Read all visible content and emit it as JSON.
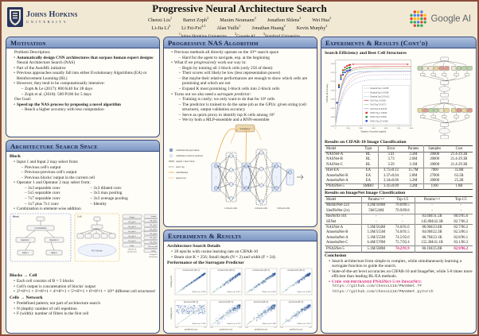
{
  "poster": {
    "title": "Progressive Neural Architecture Search",
    "jhu_logo": {
      "line1": "Johns Hopkins",
      "line2": "University"
    },
    "google_logo": "Google AI",
    "authors_line1": [
      [
        "Chenxi Liu",
        "1"
      ],
      [
        "Barret Zoph",
        "2"
      ],
      [
        "Maxim Neumann",
        "2"
      ],
      [
        "Jonathon Shlens",
        "2"
      ],
      [
        "Wei Hua",
        "2"
      ]
    ],
    "authors_line2": [
      [
        "Li-Jia Li",
        "2"
      ],
      [
        "Li Fei-Fei",
        "2,3"
      ],
      [
        "Alan Yuille",
        "1"
      ],
      [
        "Jonathan Huang",
        "2"
      ],
      [
        "Kevin Murphy",
        "2"
      ]
    ],
    "affiliations": [
      [
        "1",
        "Johns Hopkins University"
      ],
      [
        "2",
        "Google AI"
      ],
      [
        "3",
        "Stanford University"
      ]
    ]
  },
  "motivation": {
    "heading": "Motivation",
    "items": [
      {
        "l": 0,
        "t": "Problem Description:"
      },
      {
        "l": 1,
        "b": "Automatically design CNN architectures that surpass human expert designs",
        "t": ": Neural Architecture Search (NAS)"
      },
      {
        "l": 1,
        "t": "Part of the AutoML initiative"
      },
      {
        "l": 1,
        "t": "Previous approaches usually fall into either Evolutionary Algorithms (EA) or Reinforcement Learning (RL)"
      },
      {
        "l": 1,
        "t": "However, they tend to be computationally intensive:"
      },
      {
        "l": 2,
        "t": "Zoph & Le (2017): 800 K40 for 28 days"
      },
      {
        "l": 2,
        "t": "Zoph et al. (2018): 500 P100 for 5 days"
      },
      {
        "l": 0,
        "t": "Our Goal:"
      },
      {
        "l": 1,
        "b": "Speed up the NAS process by proposing a novel algorithm"
      },
      {
        "l": 2,
        "t": "Reach a higher accuracy with less computation"
      }
    ]
  },
  "search_space": {
    "heading": "Architecture Search Space",
    "block_heading": "Block",
    "items_top": [
      {
        "l": 1,
        "t": "Input 1 and Input 2 may select from:"
      },
      {
        "l": 2,
        "t": "Previous cell's output"
      },
      {
        "l": 2,
        "t": "Previous-previous cell's output"
      },
      {
        "l": 2,
        "t": "Previous blocks' output in the current cell"
      },
      {
        "l": 1,
        "t": "Operator 1 and Operator 2 may select from:"
      }
    ],
    "operators_left": [
      "3x3 separable conv",
      "5x5 separable conv",
      "7x7 separable conv",
      "1x7 plus 7x1 conv"
    ],
    "operators_right": [
      "3x3 dilated conv",
      "3x3 max pooling",
      "3x3 average pooling",
      "Identity"
    ],
    "items_combo": [
      {
        "l": 1,
        "t": "Combination is element-wise addition"
      }
    ],
    "diagram": {
      "block_label": "Block",
      "cell_label": "Cell",
      "block_nodes": [
        "Concatenation",
        "Operator 1",
        "Operator 2",
        "Input 1",
        "Input 2"
      ],
      "cell_note": "B=5 blocks",
      "net1_label": [
        "CIFAR-10",
        "Architecture"
      ],
      "net2_label": [
        "ImageNet",
        "Architecture"
      ],
      "net1_stack": [
        [
          "Softmax",
          ""
        ],
        [
          "Cell, stride 1",
          "×N"
        ],
        [
          "Cell, stride 2",
          ""
        ],
        [
          "Cell, stride 1",
          "×N"
        ],
        [
          "Cell, stride 2",
          ""
        ],
        [
          "Cell, stride 1",
          "×N"
        ],
        [
          "Image",
          ""
        ]
      ],
      "net2_stack": [
        [
          "Softmax",
          ""
        ],
        [
          "Cell, stride 1",
          "×N"
        ],
        [
          "Cell, stride 2",
          ""
        ],
        [
          "Cell, stride 1",
          "×N"
        ],
        [
          "Cell, stride 2",
          ""
        ],
        [
          "Cell, stride 1",
          "×N"
        ],
        [
          "Cell, stride 2",
          "×2"
        ],
        [
          "3x3 conv, stride 2",
          ""
        ],
        [
          "Image",
          ""
        ]
      ]
    },
    "blocks_cell_heading": "Blocks → Cell",
    "items_blocks": [
      {
        "l": 1,
        "t": "Each cell consists of B = 5 blocks"
      },
      {
        "l": 1,
        "t": "Cell's output is concatenation of blocks' output"
      },
      {
        "l": 1,
        "t": "2²×8²×1 × 3²×8²×1 × 4²×8²×1 × 5²×8²×1 × 6²×8²×1 = 10¹⁴ different cell structures!"
      }
    ],
    "cells_network_heading": "Cells → Network",
    "items_cells": [
      {
        "l": 1,
        "t": "Predefined pattern; not part of architecture search"
      },
      {
        "l": 1,
        "t": "N (depth): number of cell repetition"
      },
      {
        "l": 1,
        "t": "F (width): number of filters in the first cell"
      }
    ]
  },
  "pnas_algorithm": {
    "heading": "Progressive NAS Algorithm",
    "items": [
      {
        "l": 1,
        "t": "Previous methods all directly operate on the 10¹⁴ search space"
      },
      {
        "l": 2,
        "t": "Hard for the agent to navigate, esp. at the beginning"
      },
      {
        "l": 1,
        "t_pre": "What if we ",
        "i": "progressively",
        "t": " work our way in:"
      },
      {
        "l": 2,
        "t": "Begin by training all 1-block cells (only 256 of them)"
      },
      {
        "l": 2,
        "t": "Their scores will likely be low (less representation power)"
      },
      {
        "l": 2,
        "t": "But maybe their relative performances are enough to show which cells are promising and which are not"
      },
      {
        "l": 2,
        "t": "Expand K most promising 1-block cells into 2-block cells"
      },
      {
        "l": 1,
        "t_pre": "Turns out we also need a ",
        "i": "surrogate predictor",
        "t": ":"
      },
      {
        "l": 2,
        "t": "Training is costly; we only want to do that for 10³ cells"
      },
      {
        "l": 2,
        "t": "The predictor is trained to do the same job as the GPUs: given string (cell structure), output validation accuracy"
      },
      {
        "l": 2,
        "t": "Serve as quick proxy to identify top K cells among 10⁵"
      },
      {
        "l": 2,
        "t": "We try both a MLP-ensemble and a RNN-ensemble"
      }
    ],
    "diagram": {
      "predictor_label": "predictor",
      "legend": [
        "candidates that get trained",
        "candidates scored by predictor",
        "expand 1 more block",
        "select top",
        "train/finetune",
        "apply/score"
      ],
      "group_labels": [
        "1-block cells",
        "2-block cells",
        "3-block cells"
      ]
    }
  },
  "experiments": {
    "heading": "Experiments & Results",
    "details_heading": "Architecture Search Details",
    "items": [
      {
        "l": 1,
        "t": "20 epochs with cosine learning rate on CIFAR-10"
      },
      {
        "l": 1,
        "t": "Beam size K = 256; Small depth (N = 2) and width (F = 24)"
      }
    ],
    "surrogate_heading": "Performance of the Surrogate Predictor"
  },
  "experiments2": {
    "heading": "Experiments & Results (Cont'd)",
    "efficiency_heading": "Search Efficiency and Best Cell Structures",
    "cifar_table": {
      "title": "Results on CIFAR-10 Image Classification",
      "headers": [
        "Model",
        "Type",
        "Error",
        "Params",
        "Samples",
        "Cost"
      ],
      "vcols": [
        1,
        3
      ],
      "seps": [
        3,
        6
      ],
      "rows": [
        [
          "NASNet-A",
          "RL",
          "3.41",
          "3.3M",
          "20000",
          "21.4-29.3B"
        ],
        [
          "NASNet-B",
          "RL",
          "3.73",
          "2.6M",
          "20000",
          "21.4-29.3B"
        ],
        [
          "NASNet-C",
          "RL",
          "3.59",
          "3.1M",
          "20000",
          "21.4-29.3B"
        ],
        [
          "Hier-EA",
          "EA",
          "3.75±0.12",
          "15.7M",
          "7000",
          "35.8B"
        ],
        [
          "AmoebaNet-B",
          "EA",
          "3.37±0.04",
          "2.8M",
          "27000",
          "63.5B"
        ],
        [
          "AmoebaNet-A",
          "EA",
          "3.34±0.06",
          "3.2M",
          "20000",
          "25.2B"
        ],
        [
          "PNASNet-5",
          "SMBO",
          "3.41±0.09",
          "3.2M",
          "1160",
          "1.0B"
        ]
      ]
    },
    "imagenet_table": {
      "title": "Results on ImageNet Image Classification",
      "headers": [
        "Model",
        "Params/+×",
        "Top-1/5",
        "Params/+×",
        "Top-1/5"
      ],
      "vcols": [
        0,
        2
      ],
      "seps": [
        2,
        4,
        8
      ],
      "highlight": {
        "row": 8,
        "cols": [
          2,
          4
        ]
      },
      "rows": [
        [
          "MobileNet-224",
          "4.2M/569M",
          "70.6/89.5",
          "-",
          "-"
        ],
        [
          "ShuffleNet (2x)",
          "5M/524M",
          "70.9/89.8",
          "-",
          "-"
        ],
        [
          "ResNeXt-101",
          "-",
          "-",
          "83.6M/31.5B",
          "80.9/95.6"
        ],
        [
          "SENet",
          "-",
          "-",
          "145.8M/42.3B",
          "82.7/96.2"
        ],
        [
          "NASNet-A",
          "5.3M/564M",
          "74.0/91.6",
          "88.9M/23.6B",
          "82.7/96.2"
        ],
        [
          "AmoebaNet-B",
          "5.3M/555M",
          "74.0/91.5",
          "84.0M/22.3B",
          "82.3/96.1"
        ],
        [
          "AmoebaNet-A",
          "5.1M/555M",
          "74.5/92.0",
          "86.7M/23.1B",
          "82.8/96.1"
        ],
        [
          "AmoebaNet-C",
          "6.4M/570M",
          "75.7/92.4",
          "155.3M/41.1B",
          "83.1/96.3"
        ],
        [
          "PNASNet-5",
          "5.1M/588M",
          "74.2/91.9",
          "86.1M/25.0B",
          "82.9/96.2"
        ]
      ]
    },
    "conclusion": {
      "heading": "Conclusion",
      "items": [
        {
          "l": 1,
          "t": "Search architecture from simple to complex, while simultaneously learning a surrogate function to guide the search."
        },
        {
          "l": 1,
          "t": "State-of-the-art level accuracies on CIFAR-10 and ImageNet, while 5-8 times more efficient than leading RL/EA methods."
        },
        {
          "l": 1,
          "b": "Code and pretrained PNASNet-5 on ImageNet:",
          "cls": "mg"
        }
      ],
      "links": [
        "https://github.com/chenxi116/PNASNet.TF",
        "https://github.com/chenxi116/PNASNet.pytorch"
      ]
    }
  },
  "chart_data": [
    {
      "type": "line",
      "title": "Search Efficiency and Best Cell Structures",
      "xlabel": "Number of models sampled",
      "ylabel": "CIFAR-10 Accuracy",
      "xlim": [
        0,
        6000
      ],
      "ylim": [
        0.885,
        0.922
      ],
      "legend_position": "inside right",
      "series": [
        {
          "name": "Random Top 1",
          "final": 0.9158,
          "color": "#d9a6a6",
          "kind": "line",
          "dash": true
        },
        {
          "name": "Random Top 5",
          "final": 0.9138,
          "color": "#c9b4cd",
          "kind": "line",
          "dash": true
        },
        {
          "name": "Random Top 25",
          "final": 0.9112,
          "color": "#b4c0d6",
          "kind": "line",
          "dash": true
        },
        {
          "name": "NAS Top 1",
          "final": 0.9183,
          "color": "#e25d5d",
          "kind": "line",
          "dash": false
        },
        {
          "name": "NAS Top 5",
          "final": 0.9173,
          "color": "#a8cf9a",
          "kind": "line",
          "dash": false
        },
        {
          "name": "NAS Top 25",
          "final": 0.9156,
          "color": "#92aad4",
          "kind": "line",
          "dash": false
        },
        {
          "name": "PNAS Top 1",
          "final": 0.9196,
          "color": "#cc2a2a",
          "kind": "marker"
        },
        {
          "name": "PNAS Top 5",
          "final": 0.9181,
          "color": "#2f8b3a",
          "kind": "marker"
        },
        {
          "name": "PNAS Top 25",
          "final": 0.9166,
          "color": "#2d3fc9",
          "kind": "marker"
        }
      ]
    },
    {
      "type": "scatter",
      "title": "Performance of the Surrogate Predictor",
      "xlabel": "predicted score",
      "ylabel": "training score",
      "xticks": [
        "0.80",
        "0.92"
      ],
      "panels": [
        {
          "title": "current level (B=1)",
          "rank_corr": 0.938
        },
        {
          "title": "current level (B=2)",
          "rank_corr": 0.817
        },
        {
          "title": "current level (B=3)",
          "rank_corr": 0.836
        },
        {
          "title": "current level (B=4)",
          "rank_corr": 0.829
        },
        {
          "title": "next level (B=2)",
          "rank_corr": 0.142
        },
        {
          "title": "next level (B=3)",
          "rank_corr": 0.532
        },
        {
          "title": "next level (B=4)",
          "rank_corr": 0.588
        },
        {
          "title": "next level (B=5)",
          "rank_corr": 0.678
        }
      ]
    }
  ]
}
